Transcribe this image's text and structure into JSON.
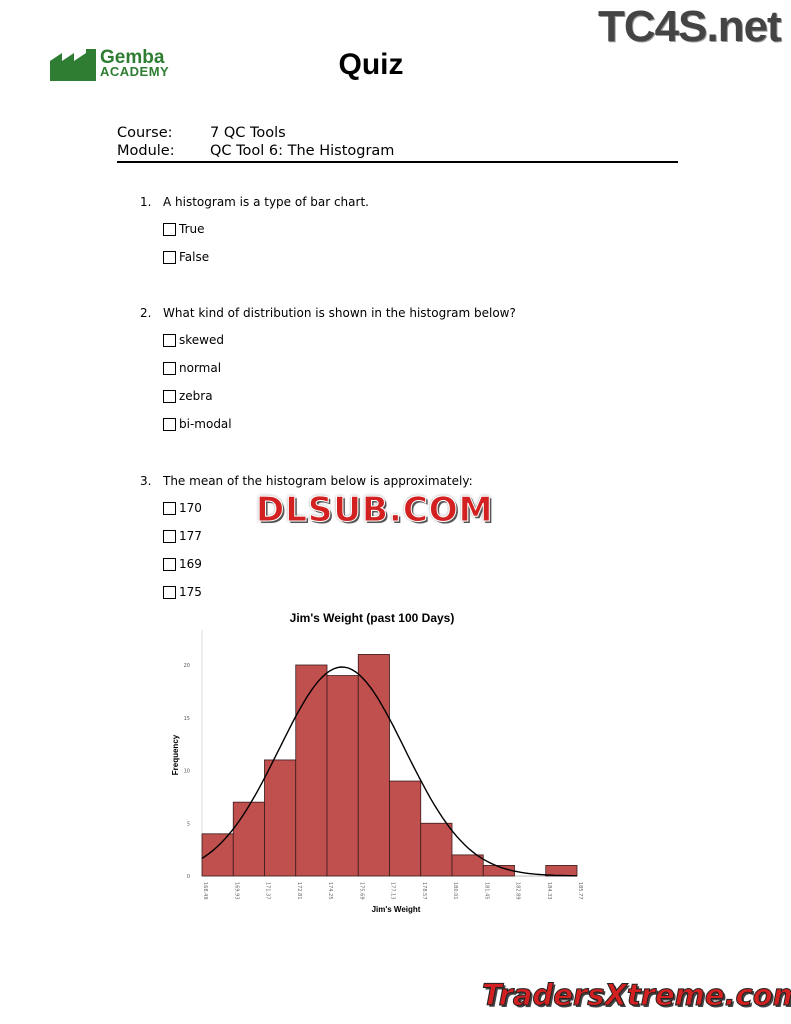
{
  "logo": {
    "line1": "Gemba",
    "line2": "ACADEMY",
    "color": "#2e7d32"
  },
  "title": "Quiz",
  "watermarks": {
    "top": "TC4S.net",
    "middle": "DLSUB.COM",
    "bottom": "TradersXtreme.com"
  },
  "meta": {
    "course_label": "Course:",
    "course": "7 QC Tools",
    "module_label": "Module:",
    "module": "QC Tool 6: The Histogram"
  },
  "questions": [
    {
      "num": "1.",
      "text": "A histogram is a type of bar chart.",
      "options": [
        "True",
        "False"
      ]
    },
    {
      "num": "2.",
      "text": "What kind of distribution is shown in the histogram below?",
      "options": [
        "skewed",
        "normal",
        "zebra",
        "bi-modal"
      ]
    },
    {
      "num": "3.",
      "text": "The mean of the histogram below is approximately:",
      "options": [
        "170",
        "177",
        "169",
        "175"
      ]
    }
  ],
  "chart_data": {
    "type": "bar",
    "title": "Jim's Weight (past 100 Days)",
    "xlabel": "Jim's Weight",
    "ylabel": "Frequency",
    "bin_edges": [
      "168.49",
      "169.93",
      "171.37",
      "172.81",
      "174.25",
      "175.69",
      "177.13",
      "178.57",
      "180.01",
      "181.45",
      "182.89",
      "184.33",
      "185.77"
    ],
    "values": [
      4,
      7,
      11,
      20,
      19,
      21,
      9,
      5,
      2,
      1,
      0,
      1
    ],
    "yticks": [
      "0",
      "5",
      "10",
      "15",
      "20"
    ],
    "ylim": [
      0,
      23
    ],
    "normal_curve": {
      "mean": 174.94,
      "sd": 2.9
    },
    "bar_color": "#c0504d"
  }
}
